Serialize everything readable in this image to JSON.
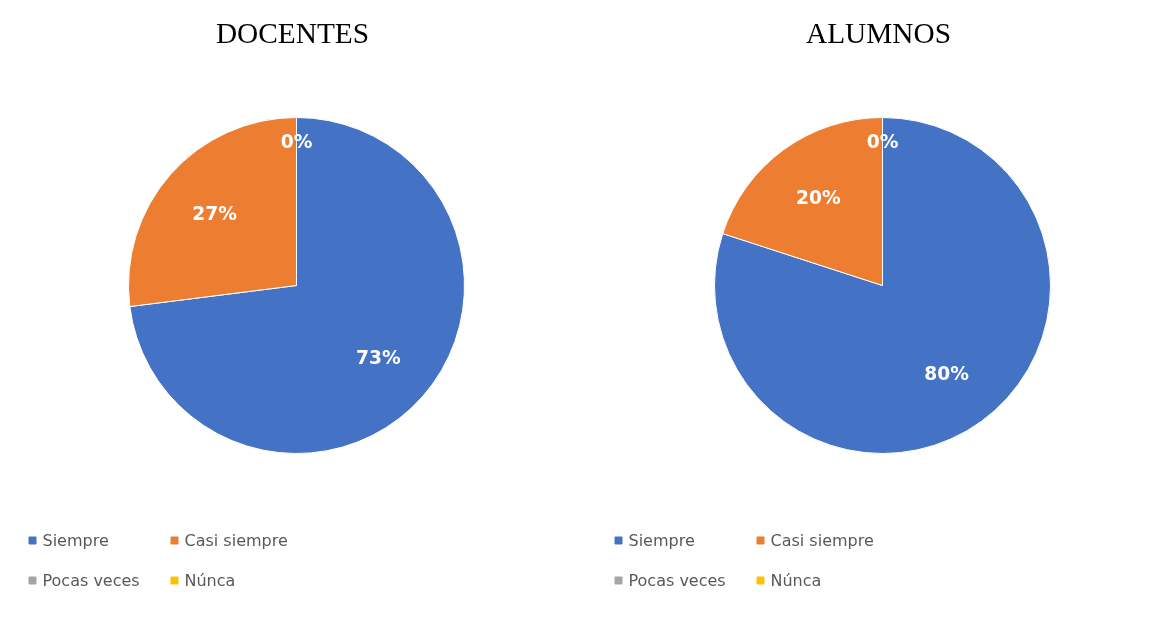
{
  "chart_data": [
    {
      "type": "pie",
      "title": "DOCENTES",
      "categories": [
        "Siempre",
        "Casi siempre",
        "Pocas veces",
        "Núnca"
      ],
      "values": [
        73,
        27,
        0,
        0
      ],
      "colors": [
        "#4472c4",
        "#ed7d31",
        "#a5a5a5",
        "#ffc000"
      ],
      "value_labels": [
        "73%",
        "27%",
        "0%",
        null
      ],
      "legend": "bottom"
    },
    {
      "type": "pie",
      "title": "ALUMNOS",
      "categories": [
        "Siempre",
        "Casi siempre",
        "Pocas veces",
        "Núnca"
      ],
      "values": [
        80,
        20,
        0,
        0
      ],
      "colors": [
        "#4472c4",
        "#ed7d31",
        "#a5a5a5",
        "#ffc000"
      ],
      "value_labels": [
        "80%",
        "20%",
        "0%",
        null
      ],
      "legend": "bottom"
    }
  ]
}
